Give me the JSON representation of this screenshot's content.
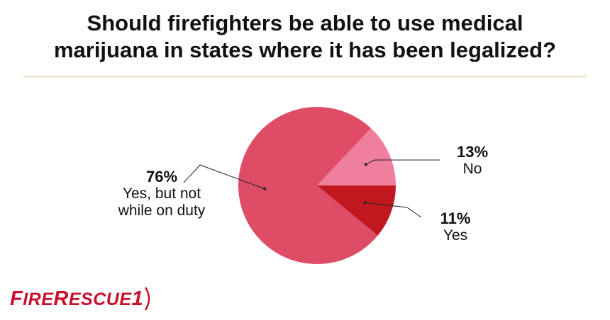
{
  "title_line1": "Should firefighters be able to use medical",
  "title_line2": "marijuana in states where it has been legalized?",
  "logo": {
    "text_f": "F",
    "text_ire": "IRE",
    "text_r": "R",
    "text_escue": "ESCUE",
    "text_1": "1"
  },
  "colors": {
    "divider": "#e6b98e",
    "brand": "#c8102e"
  },
  "chart_data": {
    "type": "pie",
    "title": "Should firefighters be able to use medical marijuana in states where it has been legalized?",
    "slices": [
      {
        "label": "Yes, but not while on duty",
        "value": 76,
        "pct_text": "76%",
        "color": "#df4c65"
      },
      {
        "label": "No",
        "value": 13,
        "pct_text": "13%",
        "color": "#f07e9f"
      },
      {
        "label": "Yes",
        "value": 11,
        "pct_text": "11%",
        "color": "#c0181e"
      }
    ],
    "legend": "none (callout labels)"
  }
}
